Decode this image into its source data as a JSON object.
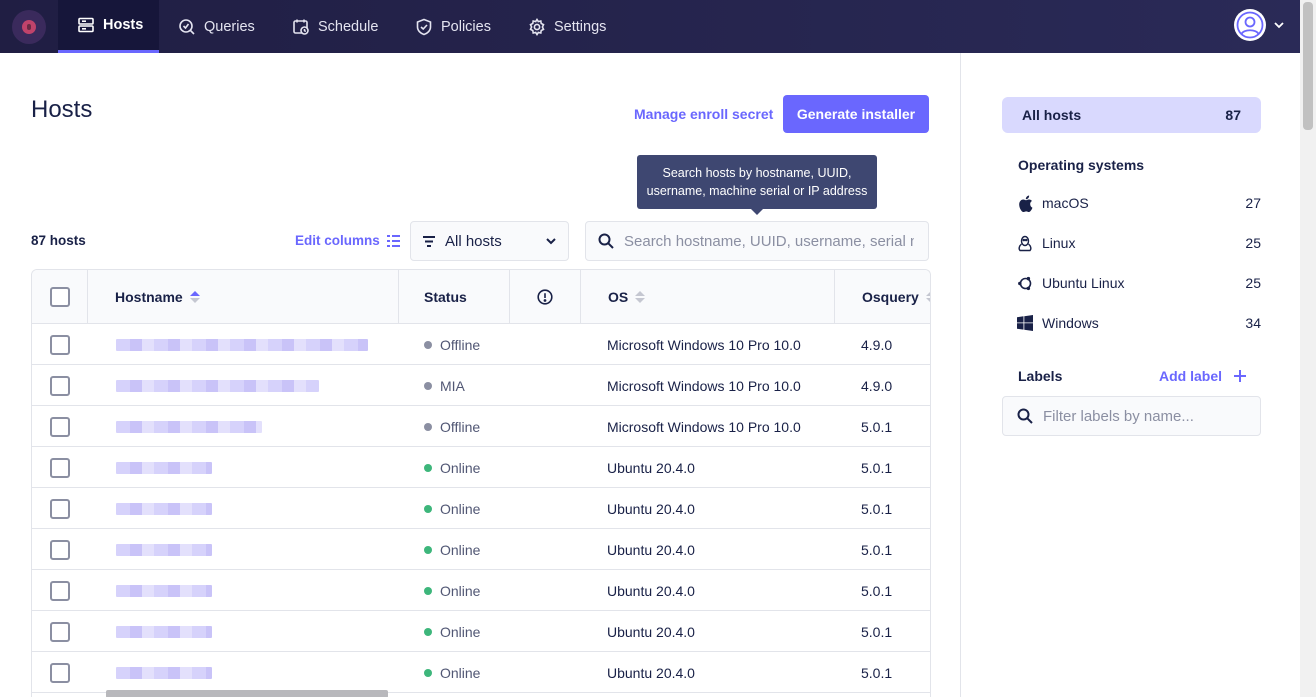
{
  "nav": {
    "items": [
      {
        "label": "Hosts",
        "icon": "hosts-icon",
        "active": true
      },
      {
        "label": "Queries",
        "icon": "queries-icon",
        "active": false
      },
      {
        "label": "Schedule",
        "icon": "schedule-icon",
        "active": false
      },
      {
        "label": "Policies",
        "icon": "policies-icon",
        "active": false
      },
      {
        "label": "Settings",
        "icon": "settings-icon",
        "active": false
      }
    ]
  },
  "page": {
    "title": "Hosts",
    "manage_enroll_secret": "Manage enroll secret",
    "generate_installer": "Generate installer",
    "tooltip": "Search hosts by hostname, UUID, username, machine serial or IP address",
    "host_count": "87 hosts",
    "edit_columns": "Edit columns",
    "filter_selected": "All hosts",
    "search_placeholder": "Search hostname, UUID, username, serial number, or IP address"
  },
  "table": {
    "columns": [
      "Hostname",
      "Status",
      "OS",
      "Osquery"
    ],
    "rows": [
      {
        "status": "Offline",
        "os": "Microsoft Windows 10 Pro 10.0",
        "osquery": "4.9.0"
      },
      {
        "status": "MIA",
        "os": "Microsoft Windows 10 Pro 10.0",
        "osquery": "4.9.0"
      },
      {
        "status": "Offline",
        "os": "Microsoft Windows 10 Pro 10.0",
        "osquery": "5.0.1"
      },
      {
        "status": "Online",
        "os": "Ubuntu 20.4.0",
        "osquery": "5.0.1"
      },
      {
        "status": "Online",
        "os": "Ubuntu 20.4.0",
        "osquery": "5.0.1"
      },
      {
        "status": "Online",
        "os": "Ubuntu 20.4.0",
        "osquery": "5.0.1"
      },
      {
        "status": "Online",
        "os": "Ubuntu 20.4.0",
        "osquery": "5.0.1"
      },
      {
        "status": "Online",
        "os": "Ubuntu 20.4.0",
        "osquery": "5.0.1"
      },
      {
        "status": "Online",
        "os": "Ubuntu 20.4.0",
        "osquery": "5.0.1"
      }
    ]
  },
  "sidebar": {
    "all_hosts": {
      "label": "All hosts",
      "count": "87"
    },
    "os_heading": "Operating systems",
    "os": [
      {
        "name": "macOS",
        "count": "27",
        "icon": "apple-icon"
      },
      {
        "name": "Linux",
        "count": "25",
        "icon": "linux-icon"
      },
      {
        "name": "Ubuntu Linux",
        "count": "25",
        "icon": "ubuntu-icon"
      },
      {
        "name": "Windows",
        "count": "34",
        "icon": "windows-icon"
      }
    ],
    "labels_heading": "Labels",
    "add_label": "Add label",
    "label_filter_placeholder": "Filter labels by name..."
  },
  "colors": {
    "accent": "#6a67fe",
    "nav_bg": "#201e43",
    "online": "#3db67b",
    "offline": "#8b8fa2"
  }
}
